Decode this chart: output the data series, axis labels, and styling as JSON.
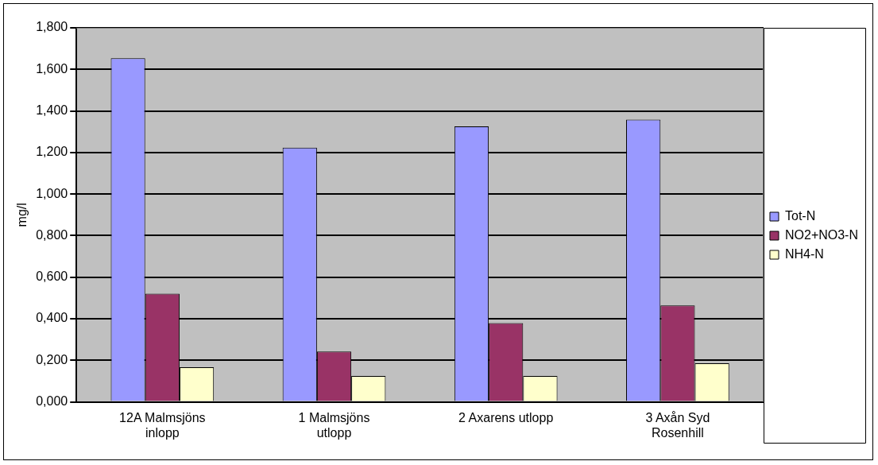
{
  "chart_data": {
    "type": "bar",
    "ylabel": "mg/l",
    "categories": [
      "12A Malmsjöns inlopp",
      "1 Malmsjöns utlopp",
      "2 Axarens utlopp",
      "3 Axån Syd Rosenhill"
    ],
    "series": [
      {
        "name": "Tot-N",
        "color": "#9999ff",
        "values": [
          1.654,
          1.223,
          1.326,
          1.358
        ]
      },
      {
        "name": "NO2+NO3-N",
        "color": "#993366",
        "values": [
          0.521,
          0.242,
          0.379,
          0.464
        ]
      },
      {
        "name": "NH4-N",
        "color": "#ffffcc",
        "values": [
          0.167,
          0.125,
          0.125,
          0.186
        ]
      }
    ],
    "ylim": [
      0,
      1.8
    ],
    "yticks": [
      {
        "value": 0,
        "label": "0,000"
      },
      {
        "value": 0.2,
        "label": "0,200"
      },
      {
        "value": 0.4,
        "label": "0,400"
      },
      {
        "value": 0.6,
        "label": "0,600"
      },
      {
        "value": 0.8,
        "label": "0,800"
      },
      {
        "value": 1,
        "label": "1,000"
      },
      {
        "value": 1.2,
        "label": "1,200"
      },
      {
        "value": 1.4,
        "label": "1,400"
      },
      {
        "value": 1.6,
        "label": "1,600"
      },
      {
        "value": 1.8,
        "label": "1,800"
      }
    ],
    "grid": "y",
    "legend": "right"
  }
}
